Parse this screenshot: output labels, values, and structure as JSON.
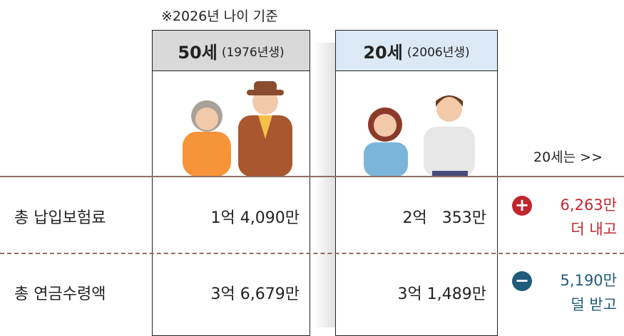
{
  "note": "※2026년 나이 기준",
  "columns": [
    {
      "age": "50세",
      "birth": "(1976년생)"
    },
    {
      "age": "20세",
      "birth": "(2006년생)"
    }
  ],
  "compare_label": "20세는 >>",
  "rows": [
    {
      "label": "총 납입보험료",
      "values": [
        "1억 4,090만",
        "2억   353만"
      ],
      "difference": "6,263만",
      "verdict": "더 내고"
    },
    {
      "label": "총 연금수령액",
      "values": [
        "3억 6,679만",
        "3억 1,489만"
      ],
      "difference": "5,190만",
      "verdict": "덜 받고"
    }
  ]
}
